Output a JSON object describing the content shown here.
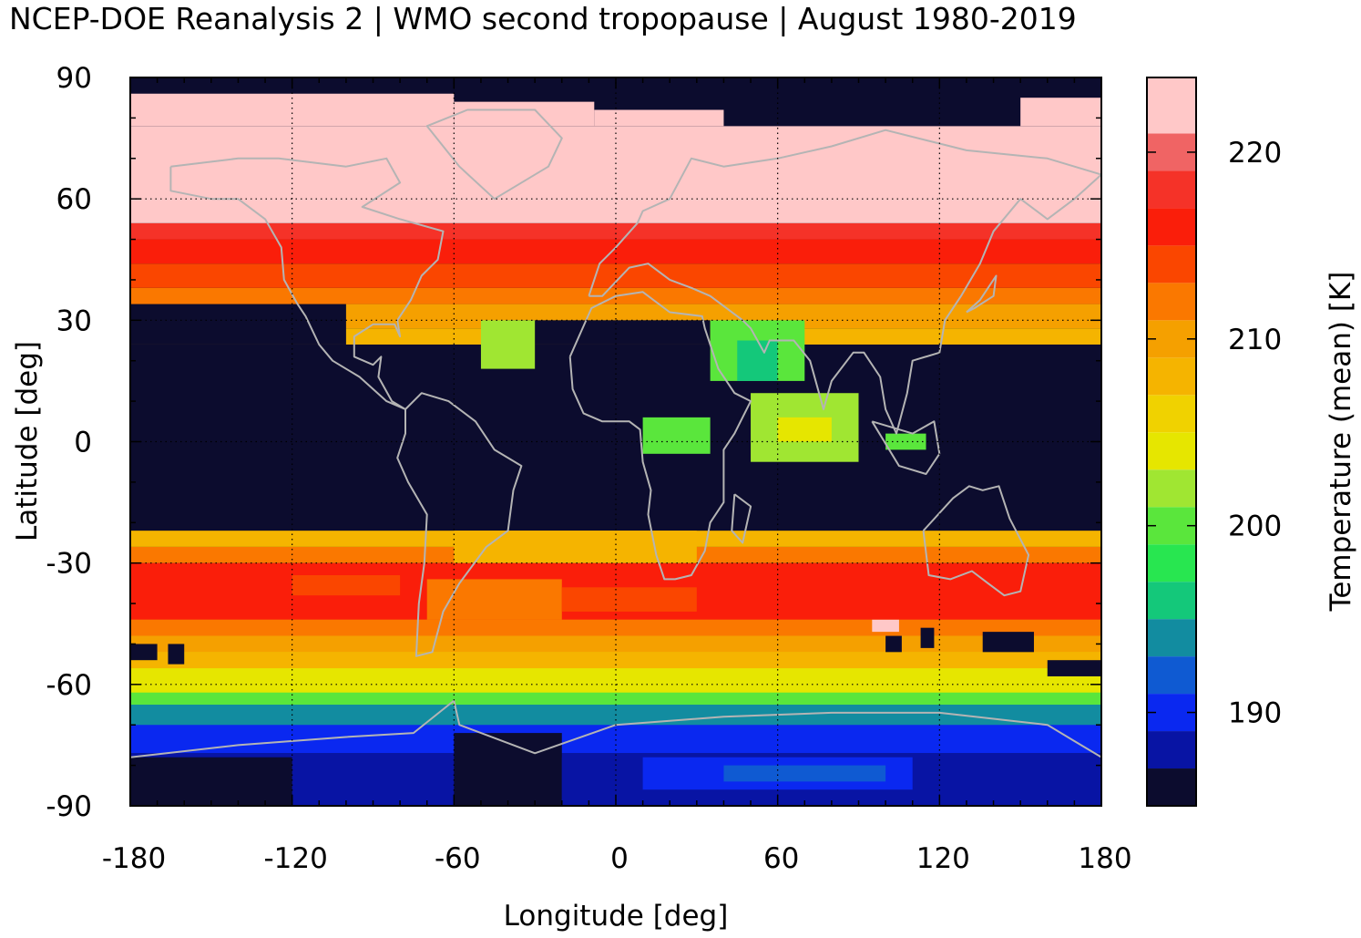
{
  "chart_data": {
    "type": "heatmap",
    "title": "NCEP-DOE Reanalysis 2 | WMO second tropopause | August 1980-2019",
    "xlabel": "Longitude [deg]",
    "ylabel": "Latitude [deg]",
    "xlim": [
      -180,
      180
    ],
    "ylim": [
      -90,
      90
    ],
    "xticks": [
      -180,
      -120,
      -60,
      0,
      60,
      120,
      180
    ],
    "yticks": [
      -90,
      -60,
      -30,
      0,
      30,
      60,
      90
    ],
    "grid": true,
    "colorbar": {
      "label": "Temperature (mean) [K]",
      "range": [
        185,
        224
      ],
      "ticks": [
        190,
        200,
        210,
        220
      ],
      "bins": [
        {
          "from": 185,
          "to": 187,
          "color": "#0c0c2e"
        },
        {
          "from": 187,
          "to": 189,
          "color": "#0814a4"
        },
        {
          "from": 189,
          "to": 191,
          "color": "#0a28f0"
        },
        {
          "from": 191,
          "to": 193,
          "color": "#0f5ad2"
        },
        {
          "from": 193,
          "to": 195,
          "color": "#128ca0"
        },
        {
          "from": 195,
          "to": 197,
          "color": "#14c87a"
        },
        {
          "from": 197,
          "to": 199,
          "color": "#28e650"
        },
        {
          "from": 199,
          "to": 201,
          "color": "#5ae63c"
        },
        {
          "from": 201,
          "to": 203,
          "color": "#a0e632"
        },
        {
          "from": 203,
          "to": 205,
          "color": "#e6e600"
        },
        {
          "from": 205,
          "to": 207,
          "color": "#f0d200"
        },
        {
          "from": 207,
          "to": 209,
          "color": "#f5b400"
        },
        {
          "from": 209,
          "to": 211,
          "color": "#f5a000"
        },
        {
          "from": 211,
          "to": 213,
          "color": "#fa7800"
        },
        {
          "from": 213,
          "to": 215,
          "color": "#fa4600"
        },
        {
          "from": 215,
          "to": 217,
          "color": "#fa1e0a"
        },
        {
          "from": 217,
          "to": 219,
          "color": "#f53228"
        },
        {
          "from": 219,
          "to": 221,
          "color": "#f06464"
        },
        {
          "from": 221,
          "to": 224,
          "color": "#ffc8c8"
        }
      ]
    },
    "regions": [
      {
        "lon": [
          -180,
          180
        ],
        "lat": [
          -90,
          90
        ],
        "value": 186
      },
      {
        "lon": [
          -180,
          180
        ],
        "lat": [
          -71,
          -40
        ],
        "value": 204
      },
      {
        "lon": [
          -180,
          180
        ],
        "lat": [
          -71,
          -62
        ],
        "value": 200
      },
      {
        "lon": [
          -180,
          180
        ],
        "lat": [
          -72,
          -65
        ],
        "value": 194
      },
      {
        "lon": [
          -180,
          180
        ],
        "lat": [
          -77,
          -70
        ],
        "value": 190
      },
      {
        "lon": [
          -180,
          180
        ],
        "lat": [
          -90,
          -77
        ],
        "value": 188
      },
      {
        "lon": [
          -180,
          -120
        ],
        "lat": [
          -90,
          -78
        ],
        "value": 186
      },
      {
        "lon": [
          -60,
          -20
        ],
        "lat": [
          -90,
          -72
        ],
        "value": 186
      },
      {
        "lon": [
          -20,
          60
        ],
        "lat": [
          -90,
          -78
        ],
        "value": 188
      },
      {
        "lon": [
          10,
          110
        ],
        "lat": [
          -86,
          -78
        ],
        "value": 190
      },
      {
        "lon": [
          40,
          100
        ],
        "lat": [
          -84,
          -80
        ],
        "value": 192
      },
      {
        "lon": [
          -180,
          180
        ],
        "lat": [
          -60,
          -56
        ],
        "value": 204
      },
      {
        "lon": [
          -180,
          180
        ],
        "lat": [
          -56,
          -52
        ],
        "value": 208
      },
      {
        "lon": [
          -180,
          180
        ],
        "lat": [
          -52,
          -48
        ],
        "value": 210
      },
      {
        "lon": [
          -180,
          180
        ],
        "lat": [
          -48,
          -44
        ],
        "value": 212
      },
      {
        "lon": [
          -180,
          180
        ],
        "lat": [
          -44,
          -30
        ],
        "value": 216
      },
      {
        "lon": [
          -120,
          -80
        ],
        "lat": [
          -38,
          -33
        ],
        "value": 214
      },
      {
        "lon": [
          -70,
          -20
        ],
        "lat": [
          -44,
          -34
        ],
        "value": 212
      },
      {
        "lon": [
          -20,
          30
        ],
        "lat": [
          -42,
          -36
        ],
        "value": 214
      },
      {
        "lon": [
          -180,
          180
        ],
        "lat": [
          -30,
          -26
        ],
        "value": 212
      },
      {
        "lon": [
          -180,
          180
        ],
        "lat": [
          -26,
          -22
        ],
        "value": 208
      },
      {
        "lon": [
          -60,
          30
        ],
        "lat": [
          -30,
          -22
        ],
        "value": 208
      },
      {
        "lon": [
          95,
          105
        ],
        "lat": [
          -47,
          -44
        ],
        "value": 221
      },
      {
        "lon": [
          -180,
          180
        ],
        "lat": [
          24,
          28
        ],
        "value": 208
      },
      {
        "lon": [
          -180,
          180
        ],
        "lat": [
          28,
          34
        ],
        "value": 210
      },
      {
        "lon": [
          -180,
          180
        ],
        "lat": [
          34,
          38
        ],
        "value": 212
      },
      {
        "lon": [
          -180,
          180
        ],
        "lat": [
          38,
          44
        ],
        "value": 214
      },
      {
        "lon": [
          -180,
          180
        ],
        "lat": [
          44,
          50
        ],
        "value": 216
      },
      {
        "lon": [
          -180,
          180
        ],
        "lat": [
          50,
          54
        ],
        "value": 218
      },
      {
        "lon": [
          -180,
          180
        ],
        "lat": [
          54,
          78
        ],
        "value": 222
      },
      {
        "lon": [
          -180,
          180
        ],
        "lat": [
          78,
          90
        ],
        "value": 186
      },
      {
        "lon": [
          -180,
          -60
        ],
        "lat": [
          78,
          86
        ],
        "value": 222
      },
      {
        "lon": [
          -60,
          -8
        ],
        "lat": [
          78,
          84
        ],
        "value": 222
      },
      {
        "lon": [
          -8,
          40
        ],
        "lat": [
          78,
          82
        ],
        "value": 222
      },
      {
        "lon": [
          150,
          180
        ],
        "lat": [
          78,
          85
        ],
        "value": 222
      },
      {
        "lon": [
          -180,
          -100
        ],
        "lat": [
          24,
          34
        ],
        "value": 186
      },
      {
        "lon": [
          -40,
          35
        ],
        "lat": [
          24,
          30
        ],
        "value": 186
      },
      {
        "lon": [
          -50,
          -30
        ],
        "lat": [
          18,
          30
        ],
        "value": 202
      },
      {
        "lon": [
          35,
          70
        ],
        "lat": [
          15,
          30
        ],
        "value": 200
      },
      {
        "lon": [
          45,
          60
        ],
        "lat": [
          15,
          25
        ],
        "value": 196
      },
      {
        "lon": [
          50,
          90
        ],
        "lat": [
          -5,
          12
        ],
        "value": 202
      },
      {
        "lon": [
          60,
          80
        ],
        "lat": [
          0,
          6
        ],
        "value": 204
      },
      {
        "lon": [
          10,
          35
        ],
        "lat": [
          -3,
          6
        ],
        "value": 200
      },
      {
        "lon": [
          100,
          115
        ],
        "lat": [
          -2,
          2
        ],
        "value": 200
      },
      {
        "lon": [
          -180,
          -170
        ],
        "lat": [
          -54,
          -50
        ],
        "value": 186
      },
      {
        "lon": [
          -166,
          -160
        ],
        "lat": [
          -55,
          -50
        ],
        "value": 186
      },
      {
        "lon": [
          100,
          106
        ],
        "lat": [
          -52,
          -48
        ],
        "value": 186
      },
      {
        "lon": [
          113,
          118
        ],
        "lat": [
          -51,
          -46
        ],
        "value": 186
      },
      {
        "lon": [
          136,
          155
        ],
        "lat": [
          -52,
          -47
        ],
        "value": 186
      },
      {
        "lon": [
          160,
          180
        ],
        "lat": [
          -58,
          -54
        ],
        "value": 186
      }
    ]
  }
}
